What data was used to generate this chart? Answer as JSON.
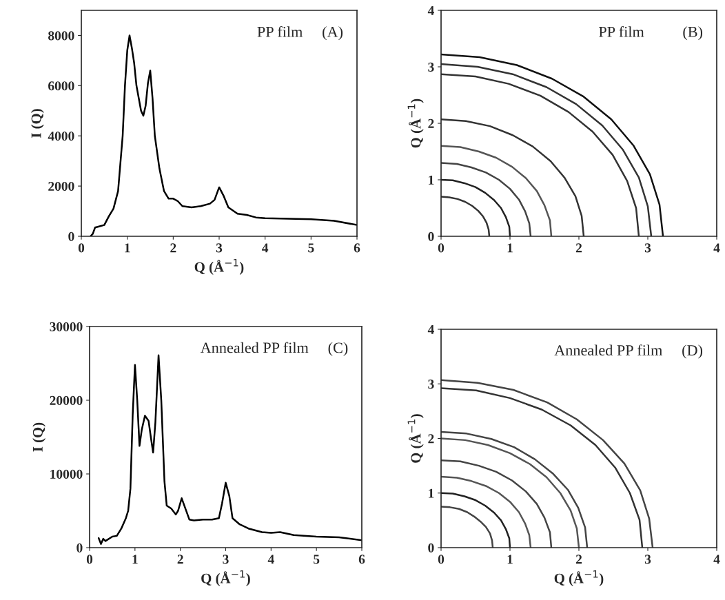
{
  "chart_data": [
    {
      "type": "line",
      "xlabel": "Q (Å$^{−1}$)",
      "ylabel": "I (Q)",
      "annotations": [
        "PP film     (A)"
      ],
      "xlim": [
        0,
        6
      ],
      "ylim": [
        0,
        9000
      ],
      "xticks": [
        0,
        1,
        2,
        3,
        4,
        5,
        6
      ],
      "yticks": [
        0,
        2000,
        4000,
        6000,
        8000
      ],
      "grid": false,
      "series": [
        {
          "color": "#000000",
          "x": [
            0.2,
            0.25,
            0.3,
            0.4,
            0.5,
            0.6,
            0.7,
            0.8,
            0.9,
            0.95,
            1.0,
            1.05,
            1.1,
            1.15,
            1.2,
            1.25,
            1.3,
            1.35,
            1.4,
            1.45,
            1.5,
            1.55,
            1.6,
            1.7,
            1.8,
            1.9,
            2.0,
            2.1,
            2.2,
            2.4,
            2.6,
            2.8,
            2.9,
            3.0,
            3.1,
            3.2,
            3.4,
            3.6,
            3.8,
            4.0,
            4.5,
            5.0,
            5.5,
            6.0
          ],
          "values": [
            0,
            100,
            350,
            400,
            450,
            800,
            1100,
            1800,
            4000,
            6000,
            7400,
            8000,
            7500,
            6900,
            6000,
            5500,
            5000,
            4800,
            5200,
            6100,
            6600,
            5500,
            4000,
            2700,
            1800,
            1500,
            1500,
            1400,
            1200,
            1150,
            1200,
            1300,
            1450,
            1950,
            1600,
            1150,
            900,
            850,
            750,
            720,
            700,
            680,
            620,
            450
          ]
        }
      ]
    },
    {
      "type": "line",
      "ylabel": "Q (Å$^{−1}$)",
      "annotations": [
        "PP film          (B)"
      ],
      "xlim": [
        0,
        4
      ],
      "ylim": [
        0,
        4
      ],
      "xticks": [
        0,
        1,
        2,
        3,
        4
      ],
      "yticks": [
        0,
        1,
        2,
        3,
        4
      ],
      "grid": false,
      "series": [
        {
          "color": "#111111",
          "x": [
            0,
            0.56,
            1.1,
            1.61,
            2.07,
            2.47,
            2.79,
            3.03,
            3.17,
            3.22
          ],
          "values": [
            3.22,
            3.17,
            3.03,
            2.79,
            2.47,
            2.07,
            1.61,
            1.1,
            0.56,
            0
          ]
        },
        {
          "color": "#333333",
          "x": [
            0,
            0.53,
            1.04,
            1.53,
            1.96,
            2.34,
            2.64,
            2.87,
            3.0,
            3.05
          ],
          "values": [
            3.05,
            3.0,
            2.87,
            2.64,
            2.34,
            1.96,
            1.53,
            1.04,
            0.53,
            0
          ]
        },
        {
          "color": "#333333",
          "x": [
            0,
            0.5,
            0.98,
            1.44,
            1.85,
            2.2,
            2.49,
            2.7,
            2.83,
            2.87
          ],
          "values": [
            2.87,
            2.83,
            2.7,
            2.49,
            2.2,
            1.85,
            1.44,
            0.98,
            0.5,
            0
          ]
        },
        {
          "color": "#333333",
          "x": [
            0,
            0.36,
            0.71,
            1.04,
            1.33,
            1.59,
            1.79,
            1.95,
            2.04,
            2.07
          ],
          "values": [
            2.07,
            2.04,
            1.95,
            1.79,
            1.59,
            1.33,
            1.04,
            0.71,
            0.36,
            0
          ]
        },
        {
          "color": "#555555",
          "x": [
            0,
            0.28,
            0.55,
            0.8,
            1.03,
            1.23,
            1.39,
            1.5,
            1.58,
            1.6
          ],
          "values": [
            1.6,
            1.58,
            1.5,
            1.39,
            1.23,
            1.03,
            0.8,
            0.55,
            0.28,
            0
          ]
        },
        {
          "color": "#444444",
          "x": [
            0,
            0.23,
            0.44,
            0.65,
            0.84,
            1.0,
            1.13,
            1.22,
            1.28,
            1.3
          ],
          "values": [
            1.3,
            1.28,
            1.22,
            1.13,
            1.0,
            0.84,
            0.65,
            0.44,
            0.23,
            0
          ]
        },
        {
          "color": "#222222",
          "x": [
            0,
            0.17,
            0.34,
            0.5,
            0.64,
            0.77,
            0.87,
            0.94,
            0.99,
            1
          ],
          "values": [
            1,
            0.99,
            0.94,
            0.87,
            0.77,
            0.64,
            0.5,
            0.34,
            0.17,
            0
          ]
        },
        {
          "color": "#333333",
          "x": [
            0,
            0.12,
            0.24,
            0.35,
            0.45,
            0.54,
            0.61,
            0.66,
            0.69,
            0.7
          ],
          "values": [
            0.7,
            0.69,
            0.66,
            0.61,
            0.54,
            0.45,
            0.35,
            0.24,
            0.12,
            0
          ]
        }
      ]
    },
    {
      "type": "line",
      "xlabel": "Q (Å$^{−1}$)",
      "ylabel": "I (Q)",
      "annotations": [
        "Annealed PP film     (C)"
      ],
      "xlim": [
        0,
        6
      ],
      "ylim": [
        0,
        30000
      ],
      "xticks": [
        0,
        1,
        2,
        3,
        4,
        5,
        6
      ],
      "yticks": [
        0,
        10000,
        20000,
        30000
      ],
      "grid": false,
      "series": [
        {
          "color": "#000000",
          "x": [
            0.2,
            0.25,
            0.3,
            0.35,
            0.5,
            0.6,
            0.7,
            0.8,
            0.85,
            0.9,
            0.95,
            1.0,
            1.05,
            1.1,
            1.15,
            1.22,
            1.3,
            1.35,
            1.4,
            1.45,
            1.52,
            1.58,
            1.65,
            1.7,
            1.8,
            1.9,
            1.95,
            2.03,
            2.1,
            2.2,
            2.3,
            2.5,
            2.7,
            2.85,
            2.92,
            3.0,
            3.08,
            3.15,
            3.3,
            3.5,
            3.8,
            4.0,
            4.2,
            4.5,
            5.0,
            5.5,
            6.0
          ],
          "values": [
            1300,
            500,
            1200,
            900,
            1500,
            1600,
            2600,
            4000,
            5000,
            8000,
            18000,
            24800,
            20000,
            13800,
            16000,
            17900,
            17200,
            15000,
            12900,
            17000,
            26100,
            20000,
            9000,
            5700,
            5300,
            4500,
            5000,
            6700,
            5500,
            3800,
            3700,
            3800,
            3800,
            4000,
            6000,
            8800,
            7000,
            4000,
            3200,
            2600,
            2100,
            2000,
            2100,
            1700,
            1500,
            1400,
            1000
          ]
        }
      ]
    },
    {
      "type": "line",
      "xlabel": "Q (Å$^{−1}$)",
      "ylabel": "Q (Å$^{−1}$)",
      "annotations": [
        "Annealed PP film     (D)"
      ],
      "xlim": [
        0,
        4
      ],
      "ylim": [
        0,
        4
      ],
      "xticks": [
        0,
        1,
        2,
        3,
        4
      ],
      "yticks": [
        0,
        1,
        2,
        3,
        4
      ],
      "grid": false,
      "series": [
        {
          "color": "#444444",
          "x": [
            0,
            0.53,
            1.05,
            1.54,
            1.97,
            2.35,
            2.66,
            2.89,
            3.02,
            3.07
          ],
          "values": [
            3.07,
            3.02,
            2.89,
            2.66,
            2.35,
            1.97,
            1.54,
            1.05,
            0.53,
            0
          ]
        },
        {
          "color": "#333333",
          "x": [
            0,
            0.51,
            1.0,
            1.46,
            1.88,
            2.24,
            2.53,
            2.74,
            2.88,
            2.92
          ],
          "values": [
            2.92,
            2.88,
            2.74,
            2.53,
            2.24,
            1.88,
            1.46,
            1.0,
            0.51,
            0
          ]
        },
        {
          "color": "#444444",
          "x": [
            0,
            0.37,
            0.73,
            1.06,
            1.36,
            1.62,
            1.84,
            1.99,
            2.09,
            2.12
          ],
          "values": [
            2.12,
            2.09,
            1.99,
            1.84,
            1.62,
            1.36,
            1.06,
            0.73,
            0.37,
            0
          ]
        },
        {
          "color": "#555555",
          "x": [
            0,
            0.35,
            0.68,
            1.0,
            1.29,
            1.53,
            1.73,
            1.88,
            1.97,
            2
          ],
          "values": [
            2,
            1.97,
            1.88,
            1.73,
            1.53,
            1.29,
            1.0,
            0.68,
            0.35,
            0
          ]
        },
        {
          "color": "#444444",
          "x": [
            0,
            0.28,
            0.55,
            0.8,
            1.03,
            1.23,
            1.39,
            1.5,
            1.58,
            1.6
          ],
          "values": [
            1.6,
            1.58,
            1.5,
            1.39,
            1.23,
            1.03,
            0.8,
            0.55,
            0.28,
            0
          ]
        },
        {
          "color": "#555555",
          "x": [
            0,
            0.23,
            0.44,
            0.65,
            0.84,
            1.0,
            1.13,
            1.22,
            1.28,
            1.3
          ],
          "values": [
            1.3,
            1.28,
            1.22,
            1.13,
            1.0,
            0.84,
            0.65,
            0.44,
            0.23,
            0
          ]
        },
        {
          "color": "#222222",
          "x": [
            0,
            0.17,
            0.34,
            0.5,
            0.64,
            0.77,
            0.87,
            0.94,
            0.99,
            1
          ],
          "values": [
            1,
            0.99,
            0.94,
            0.87,
            0.77,
            0.64,
            0.5,
            0.34,
            0.17,
            0
          ]
        },
        {
          "color": "#444444",
          "x": [
            0,
            0.13,
            0.26,
            0.38,
            0.48,
            0.57,
            0.65,
            0.71,
            0.74,
            0.75
          ],
          "values": [
            0.75,
            0.74,
            0.71,
            0.65,
            0.57,
            0.48,
            0.38,
            0.26,
            0.13,
            0
          ]
        }
      ]
    }
  ]
}
